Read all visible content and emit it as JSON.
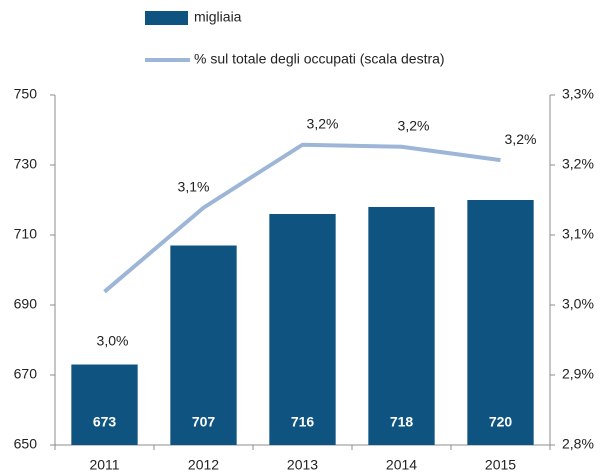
{
  "chart_data": {
    "type": "bar",
    "categories": [
      "2011",
      "2012",
      "2013",
      "2014",
      "2015"
    ],
    "series": [
      {
        "name": "migliaia",
        "type": "bar",
        "color": "#0f5480",
        "values": [
          673,
          707,
          716,
          718,
          720
        ]
      },
      {
        "name": "% sul totale degli occupati (scala destra)",
        "type": "line",
        "axis": "y2",
        "color": "#9db5d6",
        "values": [
          3.019,
          3.139,
          3.229,
          3.226,
          3.207
        ],
        "value_labels": [
          "3,0%",
          "3,1%",
          "3,2%",
          "3,2%",
          "3,2%"
        ]
      }
    ],
    "ylim": [
      650,
      750
    ],
    "yticks": [
      650,
      670,
      690,
      710,
      730,
      750
    ],
    "y2lim": [
      2.8,
      3.3
    ],
    "y2ticks": [
      {
        "value": 2.8,
        "label": "2,8%"
      },
      {
        "value": 2.9,
        "label": "2,9%"
      },
      {
        "value": 3.0,
        "label": "3,0%"
      },
      {
        "value": 3.1,
        "label": "3,1%"
      },
      {
        "value": 3.2,
        "label": "3,2%"
      },
      {
        "value": 3.3,
        "label": "3,3%"
      }
    ],
    "legend": "top",
    "grid": false
  }
}
